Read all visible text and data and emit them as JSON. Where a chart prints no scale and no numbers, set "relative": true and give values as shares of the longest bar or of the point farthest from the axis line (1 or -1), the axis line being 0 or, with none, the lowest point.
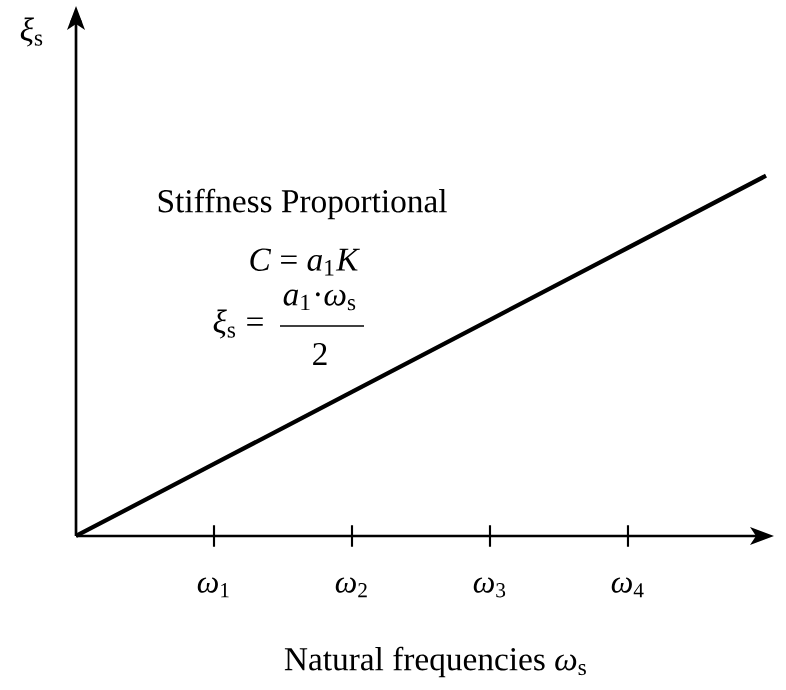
{
  "chart_data": {
    "type": "line",
    "relative": true,
    "tick_labels": "x",
    "xlabel": "Natural frequencies *ω*$_{s}$",
    "ylabel": "*ξ*$_{s}$",
    "categories": [
      null,
      "*ω*$_{1}$",
      "*ω*$_{2}$",
      "*ω*$_{3}$",
      "*ω*$_{4}$",
      null
    ],
    "series": [
      {
        "color": "#000000",
        "values": [
          0,
          0.2,
          0.4,
          0.6,
          0.8,
          1
        ]
      }
    ],
    "annotations": [
      "Stiffness Proportional",
      "*C* = *a*$_{1}$*K*",
      "*ξ*$_{s}$ =",
      "*a*$_{1}$·*ω*$_{s}$",
      "2"
    ],
    "marker": "none",
    "line_style": "solid"
  }
}
